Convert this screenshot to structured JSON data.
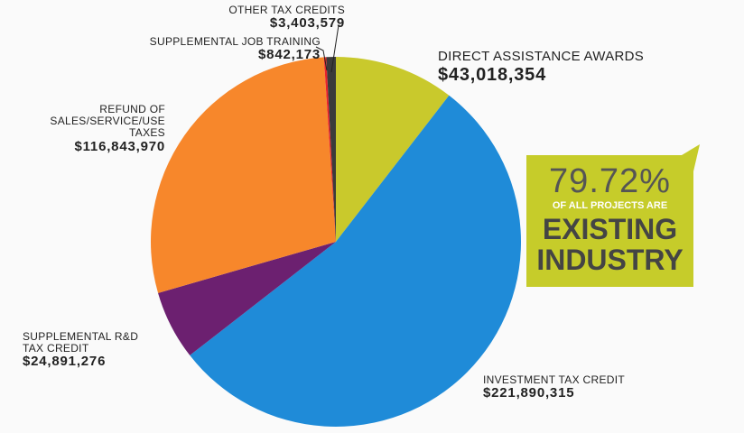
{
  "chart_data": {
    "type": "pie",
    "categories": [
      "DIRECT ASSISTANCE AWARDS",
      "INVESTMENT TAX CREDIT",
      "SUPPLEMENTAL R&D TAX CREDIT",
      "REFUND OF SALES/SERVICE/USE TAXES",
      "SUPPLEMENTAL JOB TRAINING",
      "OTHER TAX CREDITS"
    ],
    "values": [
      43018354,
      221890315,
      24891276,
      116843970,
      842173,
      3403579
    ],
    "value_labels": [
      "$43,018,354",
      "$221,890,315",
      "$24,891,276",
      "$116,843,970",
      "$842,173",
      "$3,403,579"
    ],
    "colors": [
      "#c9c92c",
      "#1f8bd8",
      "#6c2070",
      "#f7872b",
      "#e8222a",
      "#3b3b3b"
    ],
    "callout": {
      "percent": "79.72%",
      "lines": [
        "OF ALL PROJECTS ARE",
        "EXISTING",
        "INDUSTRY"
      ]
    }
  }
}
